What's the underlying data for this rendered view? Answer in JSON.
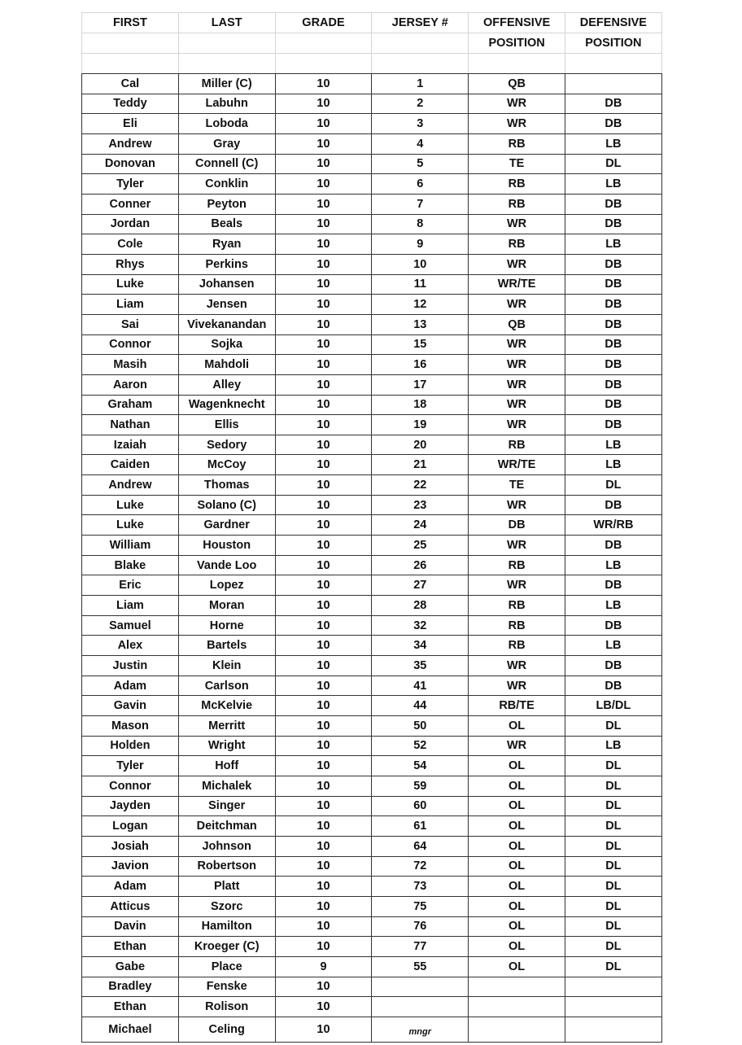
{
  "header": {
    "row1": [
      "FIRST",
      "LAST",
      "GRADE",
      "JERSEY #",
      "OFFENSIVE",
      "DEFENSIVE"
    ],
    "row2": [
      "",
      "",
      "",
      "",
      "POSITION",
      "POSITION"
    ]
  },
  "players": [
    [
      "Cal",
      "Miller (C)",
      "10",
      "1",
      "QB",
      ""
    ],
    [
      "Teddy",
      "Labuhn",
      "10",
      "2",
      "WR",
      "DB"
    ],
    [
      "Eli",
      "Loboda",
      "10",
      "3",
      "WR",
      "DB"
    ],
    [
      "Andrew",
      "Gray",
      "10",
      "4",
      "RB",
      "LB"
    ],
    [
      "Donovan",
      "Connell (C)",
      "10",
      "5",
      "TE",
      "DL"
    ],
    [
      "Tyler",
      "Conklin",
      "10",
      "6",
      "RB",
      "LB"
    ],
    [
      "Conner",
      "Peyton",
      "10",
      "7",
      "RB",
      "DB"
    ],
    [
      "Jordan",
      "Beals",
      "10",
      "8",
      "WR",
      "DB"
    ],
    [
      "Cole",
      "Ryan",
      "10",
      "9",
      "RB",
      "LB"
    ],
    [
      "Rhys",
      "Perkins",
      "10",
      "10",
      "WR",
      "DB"
    ],
    [
      "Luke",
      "Johansen",
      "10",
      "11",
      "WR/TE",
      "DB"
    ],
    [
      "Liam",
      "Jensen",
      "10",
      "12",
      "WR",
      "DB"
    ],
    [
      "Sai",
      "Vivekanandan",
      "10",
      "13",
      "QB",
      "DB"
    ],
    [
      "Connor",
      "Sojka",
      "10",
      "15",
      "WR",
      "DB"
    ],
    [
      "Masih",
      "Mahdoli",
      "10",
      "16",
      "WR",
      "DB"
    ],
    [
      "Aaron",
      "Alley",
      "10",
      "17",
      "WR",
      "DB"
    ],
    [
      "Graham",
      "Wagenknecht",
      "10",
      "18",
      "WR",
      "DB"
    ],
    [
      "Nathan",
      "Ellis",
      "10",
      "19",
      "WR",
      "DB"
    ],
    [
      "Izaiah",
      "Sedory",
      "10",
      "20",
      "RB",
      "LB"
    ],
    [
      "Caiden",
      "McCoy",
      "10",
      "21",
      "WR/TE",
      "LB"
    ],
    [
      "Andrew",
      "Thomas",
      "10",
      "22",
      "TE",
      "DL"
    ],
    [
      "Luke",
      "Solano (C)",
      "10",
      "23",
      "WR",
      "DB"
    ],
    [
      "Luke",
      "Gardner",
      "10",
      "24",
      "DB",
      "WR/RB"
    ],
    [
      "William",
      "Houston",
      "10",
      "25",
      "WR",
      "DB"
    ],
    [
      "Blake",
      "Vande Loo",
      "10",
      "26",
      "RB",
      "LB"
    ],
    [
      "Eric",
      "Lopez",
      "10",
      "27",
      "WR",
      "DB"
    ],
    [
      "Liam",
      "Moran",
      "10",
      "28",
      "RB",
      "LB"
    ],
    [
      "Samuel",
      "Horne",
      "10",
      "32",
      "RB",
      "DB"
    ],
    [
      "Alex",
      "Bartels",
      "10",
      "34",
      "RB",
      "LB"
    ],
    [
      "Justin",
      "Klein",
      "10",
      "35",
      "WR",
      "DB"
    ],
    [
      "Adam",
      "Carlson",
      "10",
      "41",
      "WR",
      "DB"
    ],
    [
      "Gavin",
      "McKelvie",
      "10",
      "44",
      "RB/TE",
      "LB/DL"
    ],
    [
      "Mason",
      "Merritt",
      "10",
      "50",
      "OL",
      "DL"
    ],
    [
      "Holden",
      "Wright",
      "10",
      "52",
      "WR",
      "LB"
    ],
    [
      "Tyler",
      "Hoff",
      "10",
      "54",
      "OL",
      "DL"
    ],
    [
      "Connor",
      "Michalek",
      "10",
      "59",
      "OL",
      "DL"
    ],
    [
      "Jayden",
      "Singer",
      "10",
      "60",
      "OL",
      "DL"
    ],
    [
      "Logan",
      "Deitchman",
      "10",
      "61",
      "OL",
      "DL"
    ],
    [
      "Josiah",
      "Johnson",
      "10",
      "64",
      "OL",
      "DL"
    ],
    [
      "Javion",
      "Robertson",
      "10",
      "72",
      "OL",
      "DL"
    ],
    [
      "Adam",
      "Platt",
      "10",
      "73",
      "OL",
      "DL"
    ],
    [
      "Atticus",
      "Szorc",
      "10",
      "75",
      "OL",
      "DL"
    ],
    [
      "Davin",
      "Hamilton",
      "10",
      "76",
      "OL",
      "DL"
    ],
    [
      "Ethan",
      "Kroeger (C)",
      "10",
      "77",
      "OL",
      "DL"
    ],
    [
      "Gabe",
      "Place",
      "9",
      "55",
      "OL",
      "DL"
    ],
    [
      "Bradley",
      "Fenske",
      "10",
      "",
      "",
      ""
    ],
    [
      "Ethan",
      "Rolison",
      "10",
      "",
      "",
      ""
    ],
    [
      "Michael",
      "Celing",
      "10",
      "mngr",
      "",
      ""
    ]
  ]
}
